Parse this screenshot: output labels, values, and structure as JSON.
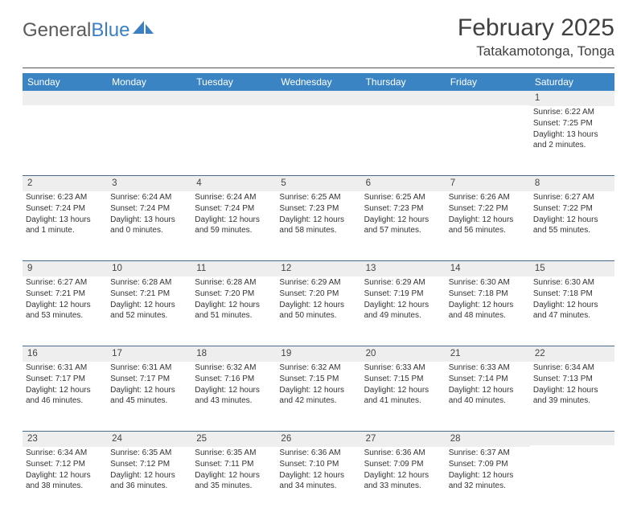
{
  "logo": {
    "text1": "General",
    "text2": "Blue"
  },
  "title": "February 2025",
  "location": "Tatakamotonga, Tonga",
  "weekday_header_bg": "#3b84c4",
  "weekdays": [
    "Sunday",
    "Monday",
    "Tuesday",
    "Wednesday",
    "Thursday",
    "Friday",
    "Saturday"
  ],
  "weeks": [
    [
      null,
      null,
      null,
      null,
      null,
      null,
      {
        "d": "1",
        "sr": "Sunrise: 6:22 AM",
        "ss": "Sunset: 7:25 PM",
        "dl": "Daylight: 13 hours and 2 minutes."
      }
    ],
    [
      {
        "d": "2",
        "sr": "Sunrise: 6:23 AM",
        "ss": "Sunset: 7:24 PM",
        "dl": "Daylight: 13 hours and 1 minute."
      },
      {
        "d": "3",
        "sr": "Sunrise: 6:24 AM",
        "ss": "Sunset: 7:24 PM",
        "dl": "Daylight: 13 hours and 0 minutes."
      },
      {
        "d": "4",
        "sr": "Sunrise: 6:24 AM",
        "ss": "Sunset: 7:24 PM",
        "dl": "Daylight: 12 hours and 59 minutes."
      },
      {
        "d": "5",
        "sr": "Sunrise: 6:25 AM",
        "ss": "Sunset: 7:23 PM",
        "dl": "Daylight: 12 hours and 58 minutes."
      },
      {
        "d": "6",
        "sr": "Sunrise: 6:25 AM",
        "ss": "Sunset: 7:23 PM",
        "dl": "Daylight: 12 hours and 57 minutes."
      },
      {
        "d": "7",
        "sr": "Sunrise: 6:26 AM",
        "ss": "Sunset: 7:22 PM",
        "dl": "Daylight: 12 hours and 56 minutes."
      },
      {
        "d": "8",
        "sr": "Sunrise: 6:27 AM",
        "ss": "Sunset: 7:22 PM",
        "dl": "Daylight: 12 hours and 55 minutes."
      }
    ],
    [
      {
        "d": "9",
        "sr": "Sunrise: 6:27 AM",
        "ss": "Sunset: 7:21 PM",
        "dl": "Daylight: 12 hours and 53 minutes."
      },
      {
        "d": "10",
        "sr": "Sunrise: 6:28 AM",
        "ss": "Sunset: 7:21 PM",
        "dl": "Daylight: 12 hours and 52 minutes."
      },
      {
        "d": "11",
        "sr": "Sunrise: 6:28 AM",
        "ss": "Sunset: 7:20 PM",
        "dl": "Daylight: 12 hours and 51 minutes."
      },
      {
        "d": "12",
        "sr": "Sunrise: 6:29 AM",
        "ss": "Sunset: 7:20 PM",
        "dl": "Daylight: 12 hours and 50 minutes."
      },
      {
        "d": "13",
        "sr": "Sunrise: 6:29 AM",
        "ss": "Sunset: 7:19 PM",
        "dl": "Daylight: 12 hours and 49 minutes."
      },
      {
        "d": "14",
        "sr": "Sunrise: 6:30 AM",
        "ss": "Sunset: 7:18 PM",
        "dl": "Daylight: 12 hours and 48 minutes."
      },
      {
        "d": "15",
        "sr": "Sunrise: 6:30 AM",
        "ss": "Sunset: 7:18 PM",
        "dl": "Daylight: 12 hours and 47 minutes."
      }
    ],
    [
      {
        "d": "16",
        "sr": "Sunrise: 6:31 AM",
        "ss": "Sunset: 7:17 PM",
        "dl": "Daylight: 12 hours and 46 minutes."
      },
      {
        "d": "17",
        "sr": "Sunrise: 6:31 AM",
        "ss": "Sunset: 7:17 PM",
        "dl": "Daylight: 12 hours and 45 minutes."
      },
      {
        "d": "18",
        "sr": "Sunrise: 6:32 AM",
        "ss": "Sunset: 7:16 PM",
        "dl": "Daylight: 12 hours and 43 minutes."
      },
      {
        "d": "19",
        "sr": "Sunrise: 6:32 AM",
        "ss": "Sunset: 7:15 PM",
        "dl": "Daylight: 12 hours and 42 minutes."
      },
      {
        "d": "20",
        "sr": "Sunrise: 6:33 AM",
        "ss": "Sunset: 7:15 PM",
        "dl": "Daylight: 12 hours and 41 minutes."
      },
      {
        "d": "21",
        "sr": "Sunrise: 6:33 AM",
        "ss": "Sunset: 7:14 PM",
        "dl": "Daylight: 12 hours and 40 minutes."
      },
      {
        "d": "22",
        "sr": "Sunrise: 6:34 AM",
        "ss": "Sunset: 7:13 PM",
        "dl": "Daylight: 12 hours and 39 minutes."
      }
    ],
    [
      {
        "d": "23",
        "sr": "Sunrise: 6:34 AM",
        "ss": "Sunset: 7:12 PM",
        "dl": "Daylight: 12 hours and 38 minutes."
      },
      {
        "d": "24",
        "sr": "Sunrise: 6:35 AM",
        "ss": "Sunset: 7:12 PM",
        "dl": "Daylight: 12 hours and 36 minutes."
      },
      {
        "d": "25",
        "sr": "Sunrise: 6:35 AM",
        "ss": "Sunset: 7:11 PM",
        "dl": "Daylight: 12 hours and 35 minutes."
      },
      {
        "d": "26",
        "sr": "Sunrise: 6:36 AM",
        "ss": "Sunset: 7:10 PM",
        "dl": "Daylight: 12 hours and 34 minutes."
      },
      {
        "d": "27",
        "sr": "Sunrise: 6:36 AM",
        "ss": "Sunset: 7:09 PM",
        "dl": "Daylight: 12 hours and 33 minutes."
      },
      {
        "d": "28",
        "sr": "Sunrise: 6:37 AM",
        "ss": "Sunset: 7:09 PM",
        "dl": "Daylight: 12 hours and 32 minutes."
      },
      null
    ]
  ]
}
